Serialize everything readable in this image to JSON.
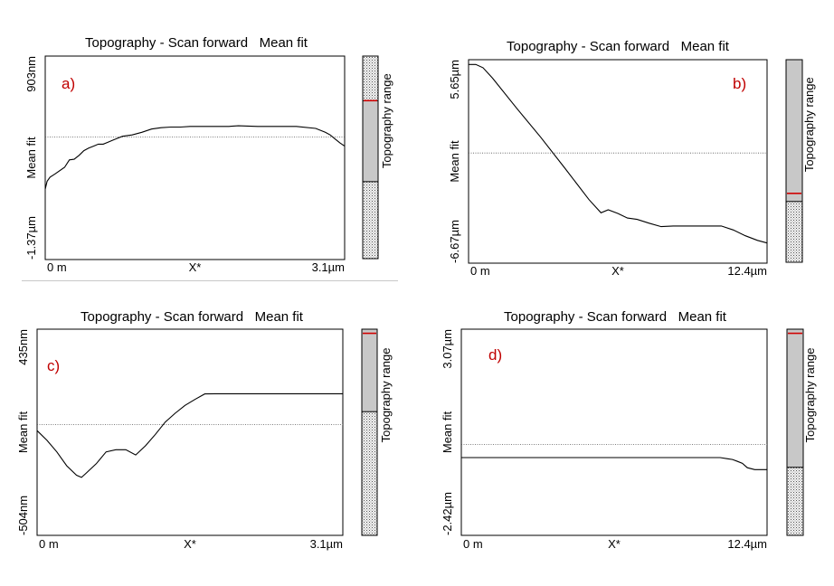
{
  "chart_data": [
    {
      "type": "line",
      "panel_letter": "a)",
      "title": "Topography - Scan forward   Mean fit",
      "xlabel": "X*",
      "ylabel": "Mean fit",
      "x_tick_labels": [
        "0 m",
        "3.1µm"
      ],
      "y_tick_labels": [
        "903nm",
        "-1.37µm"
      ],
      "colorbar_label": "Topography range",
      "x_unit": "µm",
      "y_unit": "nm",
      "xlim": [
        0,
        3.1
      ],
      "ylim": [
        -1370,
        903
      ],
      "mean_line": 0,
      "colorbar_marker": 0.78,
      "colorbar_split": 0.38,
      "series": [
        {
          "x": [
            0,
            0.02,
            0.05,
            0.1,
            0.2,
            0.25,
            0.3,
            0.35,
            0.4,
            0.45,
            0.5,
            0.55,
            0.6,
            0.65,
            0.7,
            0.8,
            0.9,
            1.0,
            1.1,
            1.2,
            1.3,
            1.4,
            1.5,
            1.6,
            1.7,
            1.8,
            1.9,
            2.0,
            2.2,
            2.4,
            2.6,
            2.8,
            2.9,
            2.95,
            3.0,
            3.05,
            3.1
          ],
          "y": [
            -583,
            -495,
            -450,
            -414,
            -340,
            -257,
            -250,
            -206,
            -154,
            -125,
            -103,
            -81,
            -81,
            -59,
            -37,
            7,
            22,
            51,
            88,
            103,
            110,
            110,
            117,
            117,
            117,
            117,
            117,
            124,
            117,
            117,
            117,
            95,
            51,
            22,
            -22,
            -66,
            -103
          ]
        }
      ]
    },
    {
      "type": "line",
      "panel_letter": "b)",
      "title": "Topography - Scan forward   Mean fit",
      "xlabel": "X*",
      "ylabel": "Mean fit",
      "x_tick_labels": [
        "0 m",
        "12.4µm"
      ],
      "y_tick_labels": [
        "5.65µm",
        "-6.67µm"
      ],
      "colorbar_label": "Topography range",
      "x_unit": "µm",
      "y_unit": "µm",
      "xlim": [
        0,
        12.4
      ],
      "ylim": [
        -6.67,
        5.65
      ],
      "mean_line": 0,
      "colorbar_marker": 0.34,
      "colorbar_split": 0.3,
      "series": [
        {
          "x": [
            0,
            0.3,
            0.6,
            1.0,
            2.0,
            3.0,
            4.0,
            5.0,
            5.5,
            5.8,
            6.2,
            6.6,
            7.0,
            7.5,
            8.0,
            8.5,
            9.0,
            10.0,
            10.5,
            11.0,
            11.5,
            12.0,
            12.4
          ],
          "y": [
            5.36,
            5.36,
            5.16,
            4.53,
            2.71,
            0.95,
            -0.92,
            -2.82,
            -3.62,
            -3.44,
            -3.66,
            -3.94,
            -4.02,
            -4.25,
            -4.46,
            -4.42,
            -4.42,
            -4.42,
            -4.42,
            -4.66,
            -5.01,
            -5.29,
            -5.45
          ]
        }
      ]
    },
    {
      "type": "line",
      "panel_letter": "c)",
      "title": "Topography - Scan forward   Mean fit",
      "xlabel": "X*",
      "ylabel": "Mean fit",
      "x_tick_labels": [
        "0 m",
        "3.1µm"
      ],
      "y_tick_labels": [
        "435nm",
        "-504nm"
      ],
      "colorbar_label": "Topography range",
      "x_unit": "µm",
      "y_unit": "nm",
      "xlim": [
        0,
        3.1
      ],
      "ylim": [
        -504,
        435
      ],
      "mean_line": 0,
      "colorbar_marker": 0.98,
      "colorbar_split": 0.6,
      "series": [
        {
          "x": [
            0,
            0.1,
            0.2,
            0.3,
            0.4,
            0.45,
            0.5,
            0.6,
            0.7,
            0.8,
            0.9,
            1.0,
            1.1,
            1.2,
            1.3,
            1.4,
            1.5,
            1.6,
            1.7,
            1.8,
            1.9,
            2.0,
            2.5,
            3.1
          ],
          "y": [
            -27,
            -71,
            -124,
            -187,
            -230,
            -240,
            -220,
            -178,
            -124,
            -114,
            -114,
            -138,
            -96,
            -44,
            12,
            52,
            88,
            115,
            140,
            141,
            141,
            141,
            141,
            141
          ]
        }
      ]
    },
    {
      "type": "line",
      "panel_letter": "d)",
      "title": "Topography - Scan forward   Mean fit",
      "xlabel": "X*",
      "ylabel": "Mean fit",
      "x_tick_labels": [
        "0 m",
        "12.4µm"
      ],
      "y_tick_labels": [
        "3.07µm",
        "-2.42µm"
      ],
      "colorbar_label": "Topography range",
      "x_unit": "µm",
      "y_unit": "µm",
      "xlim": [
        0,
        12.4
      ],
      "ylim": [
        -2.42,
        3.07
      ],
      "mean_line": 0,
      "colorbar_marker": 0.98,
      "colorbar_split": 0.33,
      "series": [
        {
          "x": [
            0,
            2,
            4,
            6,
            8,
            10,
            10.5,
            10.8,
            11.0,
            11.2,
            11.4,
            11.6,
            11.9,
            12.4
          ],
          "y": [
            -0.35,
            -0.35,
            -0.35,
            -0.35,
            -0.35,
            -0.35,
            -0.35,
            -0.38,
            -0.4,
            -0.45,
            -0.5,
            -0.62,
            -0.67,
            -0.67
          ]
        }
      ]
    }
  ]
}
